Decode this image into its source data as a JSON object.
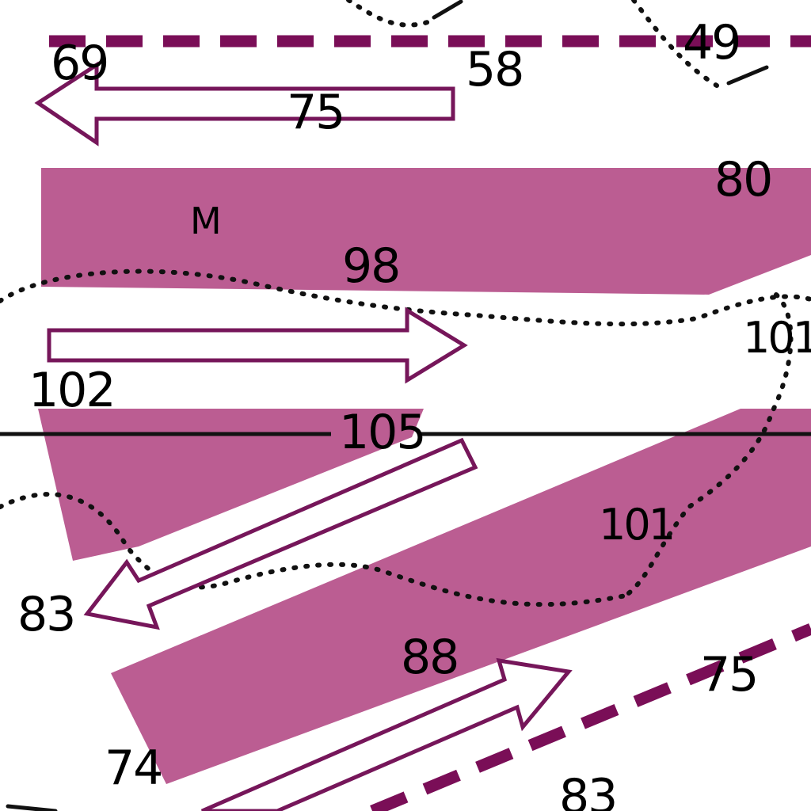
{
  "chart": {
    "depth_soundings": [
      "69",
      "58",
      "49",
      "75",
      "80",
      "98",
      "101",
      "102",
      "105",
      "101",
      "83",
      "88",
      "75",
      "74",
      "83"
    ],
    "seabed_label": "M",
    "colors": {
      "zone_fill": "#bb5d92",
      "arrow_outline": "#76165a",
      "traffic_boundary": "#7a0e57",
      "ink": "#111111"
    },
    "symbols": {
      "traffic_lane_arrow": "outlined-arrow",
      "separation_zone": "magenta-band",
      "depth_contour": "dotted-line",
      "limit_line": "dashed-magenta-line"
    }
  }
}
